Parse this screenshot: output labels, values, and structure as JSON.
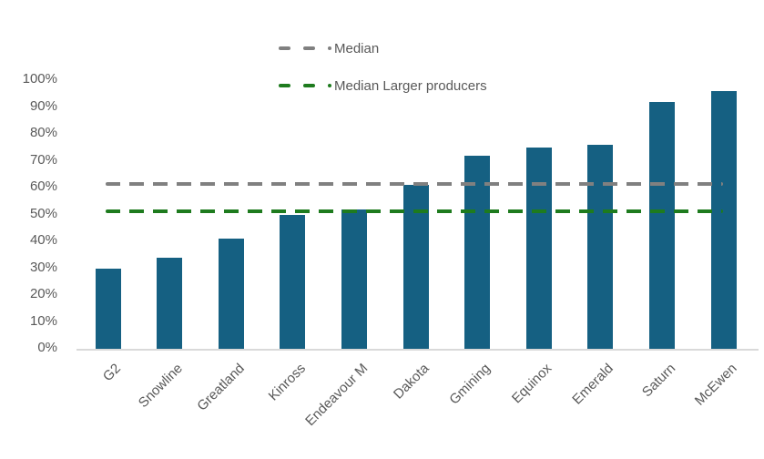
{
  "chart_data": {
    "type": "bar",
    "title": "",
    "categories": [
      "G2",
      "Snowline",
      "Greatland",
      "Kinross",
      "Endeavour M",
      "Dakota",
      "Gmining",
      "Equinox",
      "Emerald",
      "Saturn",
      "McEwen"
    ],
    "values": [
      30,
      34,
      41,
      50,
      52,
      61,
      72,
      75,
      76,
      92,
      96
    ],
    "value_unit": "%",
    "ylim": [
      0,
      100
    ],
    "ytick_values": [
      0,
      10,
      20,
      30,
      40,
      50,
      60,
      70,
      80,
      90,
      100
    ],
    "ytick_labels": [
      "0%",
      "10%",
      "20%",
      "30%",
      "40%",
      "50%",
      "60%",
      "70%",
      "80%",
      "90%",
      "100%"
    ],
    "grid": false,
    "legend_position": "top-center",
    "legend": [
      "Median",
      "Median Larger producers"
    ],
    "reference_lines": [
      {
        "label": "Median",
        "value": 61,
        "color": "#808080",
        "style": "dashed"
      },
      {
        "label": "Median Larger producers",
        "value": 51,
        "color": "#1E7B1E",
        "style": "dashed"
      }
    ],
    "colors": {
      "bar": "#156082",
      "axis_text": "#595959",
      "axis_line": "#D9D9D9"
    }
  }
}
